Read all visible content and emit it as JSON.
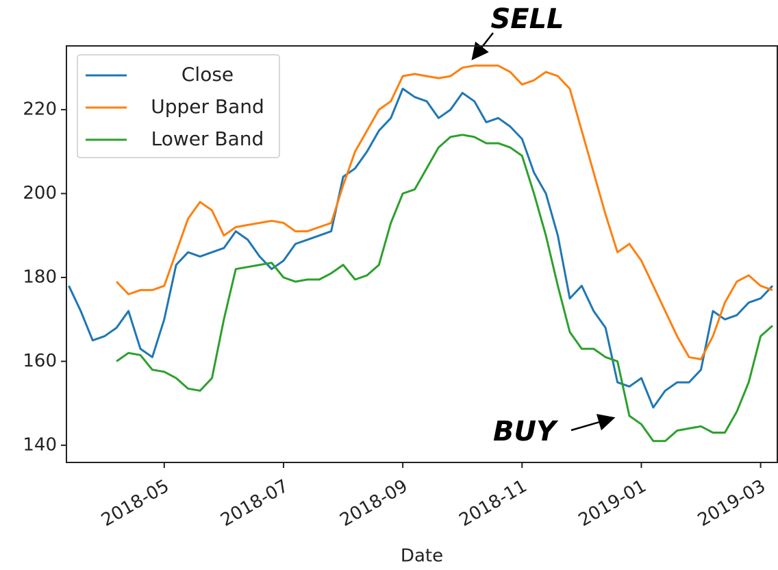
{
  "chart_data": {
    "type": "line",
    "xlabel": "Date",
    "x": [
      3.4,
      3.6,
      3.8,
      4.0,
      4.2,
      4.4,
      4.6,
      4.8,
      5.0,
      5.2,
      5.4,
      5.6,
      5.8,
      6.0,
      6.2,
      6.4,
      6.6,
      6.8,
      7.0,
      7.2,
      7.4,
      7.6,
      7.8,
      8.0,
      8.2,
      8.4,
      8.6,
      8.8,
      9.0,
      9.2,
      9.4,
      9.6,
      9.8,
      10.0,
      10.2,
      10.4,
      10.6,
      10.8,
      11.0,
      11.2,
      11.4,
      11.6,
      11.8,
      12.0,
      12.2,
      12.4,
      12.6,
      12.8,
      13.0,
      13.2,
      13.4,
      13.6,
      13.8,
      14.0,
      14.2,
      14.4,
      14.6,
      14.8,
      15.0,
      15.2
    ],
    "series": [
      {
        "name": "Close",
        "color": "#1f77b4",
        "values": [
          178,
          172,
          165,
          166,
          168,
          172,
          163,
          161,
          170,
          183,
          186,
          185,
          186,
          187,
          191,
          189,
          185,
          182,
          184,
          188,
          189,
          190,
          191,
          204,
          206,
          210,
          215,
          218,
          225,
          223,
          222,
          218,
          220,
          224,
          222,
          217,
          218,
          216,
          213,
          205,
          200,
          190,
          175,
          178,
          172,
          168,
          155,
          154,
          156,
          149,
          153,
          155,
          155,
          158,
          172,
          170,
          171,
          174,
          175,
          178
        ]
      },
      {
        "name": "Upper Band",
        "color": "#ff7f0e",
        "values": [
          null,
          null,
          null,
          null,
          179,
          176,
          177,
          177,
          178,
          186,
          194,
          198,
          196,
          190,
          192,
          192.5,
          193,
          193.5,
          193,
          191,
          191,
          192,
          193,
          202,
          210,
          215,
          220,
          222,
          228,
          228.5,
          228,
          227.5,
          228,
          230,
          230.5,
          230.5,
          230.5,
          229,
          226,
          227,
          229,
          228,
          225,
          215,
          205,
          195,
          186,
          188,
          184,
          178,
          172,
          166,
          161,
          160.5,
          166,
          174,
          179,
          180.5,
          178,
          177
        ]
      },
      {
        "name": "Lower Band",
        "color": "#2ca02c",
        "values": [
          null,
          null,
          null,
          null,
          160,
          162,
          161.5,
          158,
          157.5,
          156,
          153.5,
          153,
          156,
          170,
          182,
          182.5,
          183,
          183.5,
          180,
          179,
          179.5,
          179.5,
          181,
          183,
          179.5,
          180.5,
          183,
          193,
          200,
          201,
          206,
          211,
          213.5,
          214,
          213.5,
          212,
          212,
          211,
          209,
          200,
          190,
          178,
          167,
          163,
          163,
          161,
          160,
          147,
          145,
          141,
          141,
          143.5,
          144,
          144.5,
          143,
          143,
          148,
          155,
          166,
          168.5
        ]
      }
    ],
    "xlim": [
      3.36,
      15.28
    ],
    "xticks": [
      {
        "value": 5,
        "label": "2018-05"
      },
      {
        "value": 7,
        "label": "2018-07"
      },
      {
        "value": 9,
        "label": "2018-09"
      },
      {
        "value": 11,
        "label": "2018-11"
      },
      {
        "value": 13,
        "label": "2019-01"
      },
      {
        "value": 15,
        "label": "2019-03"
      }
    ],
    "ylim": [
      135.9,
      235.2
    ],
    "yticks": [
      140,
      160,
      180,
      200,
      220
    ],
    "legend": "upper left",
    "annotations": [
      "SELL",
      "BUY"
    ]
  }
}
